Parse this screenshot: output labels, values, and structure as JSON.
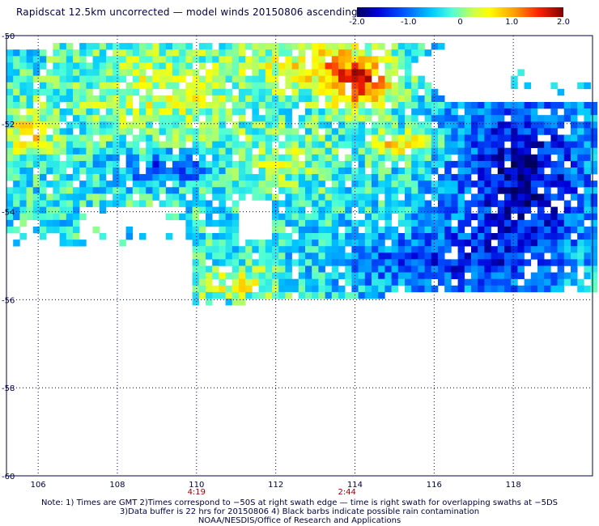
{
  "title": "Rapidscat 12.5km uncorrected — model winds 20150806 ascending",
  "colorbar": {
    "ticks": [
      {
        "label": "-2.0",
        "value": -2.0
      },
      {
        "label": "-1.0",
        "value": -1.0
      },
      {
        "label": "0",
        "value": 0
      },
      {
        "label": "1.0",
        "value": 1.0
      },
      {
        "label": "2.0",
        "value": 2.0
      }
    ],
    "range": [
      -2.0,
      2.0
    ]
  },
  "map": {
    "lon_range": [
      105.2,
      120.0
    ],
    "lat_range": [
      -60,
      -50
    ],
    "lon_ticks": [
      106,
      108,
      110,
      112,
      114,
      116,
      118
    ],
    "lat_ticks": [
      -50,
      -52,
      -54,
      -56,
      -58,
      -60
    ],
    "lat_tick_labels": [
      "-50",
      "-52",
      "-54",
      "-56",
      "-58",
      "-60"
    ],
    "lon_tick_labels": [
      "106",
      "108",
      "110",
      "112",
      "114",
      "116",
      "118"
    ],
    "time_labels": [
      {
        "label": "4:19",
        "lon": 110.0
      },
      {
        "label": "2:44",
        "lon": 113.8
      }
    ],
    "grid": "dotted"
  },
  "notes": [
    "Note: 1) Times are GMT 2)Times correspond to −50S at right swath edge — time is right swath for overlapping swaths at −5DS",
    "3)Data buffer is 22 hrs for 20150806 4) Black barbs indicate possible rain contamination",
    "NOAA/NESDIS/Office of Research and Applications"
  ]
}
